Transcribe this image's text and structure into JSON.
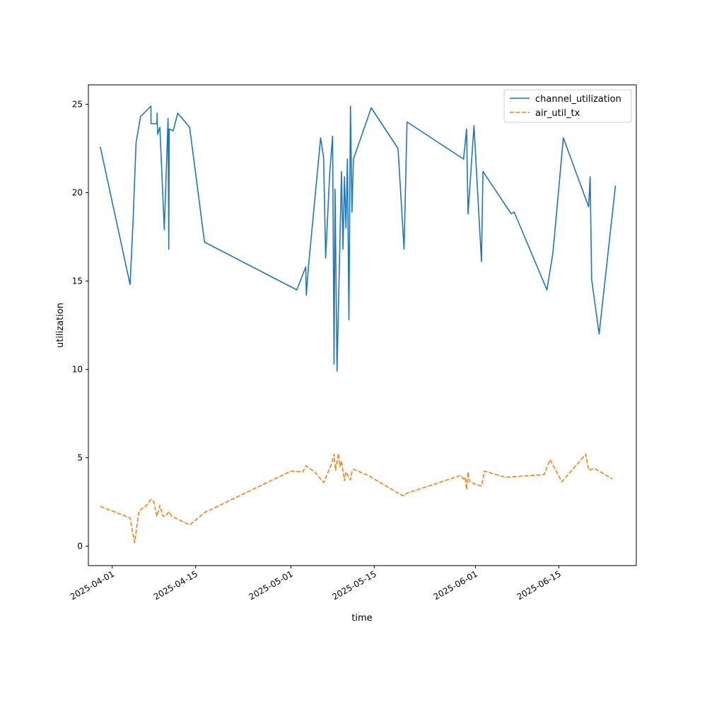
{
  "chart_data": {
    "type": "line",
    "title": "",
    "xlabel": "time",
    "ylabel": "utilization",
    "x_axis": "date",
    "xlim": [
      "2025-03-28",
      "2025-06-28"
    ],
    "ylim": [
      -1.1,
      26.1
    ],
    "x_ticks": [
      {
        "date": "2025-04-01",
        "label": "2025-04-01"
      },
      {
        "date": "2025-04-15",
        "label": "2025-04-15"
      },
      {
        "date": "2025-05-01",
        "label": "2025-05-01"
      },
      {
        "date": "2025-05-15",
        "label": "2025-05-15"
      },
      {
        "date": "2025-06-01",
        "label": "2025-06-01"
      },
      {
        "date": "2025-06-15",
        "label": "2025-06-15"
      }
    ],
    "y_ticks": [
      0,
      5,
      10,
      15,
      20,
      25
    ],
    "grid": false,
    "legend_position": "top-right",
    "series": [
      {
        "name": "channel_utilization",
        "color": "#1f77b4",
        "dash": "solid",
        "points": [
          [
            "2025-03-30",
            22.6
          ],
          [
            "2025-04-04",
            14.8
          ],
          [
            "2025-04-04T12:00",
            18.4
          ],
          [
            "2025-04-05",
            22.8
          ],
          [
            "2025-04-05T18:00",
            24.3
          ],
          [
            "2025-04-07T12:00",
            24.9
          ],
          [
            "2025-04-07T12:30",
            23.9
          ],
          [
            "2025-04-08T12:00",
            23.9
          ],
          [
            "2025-04-08T13:00",
            24.5
          ],
          [
            "2025-04-08T15:00",
            23.3
          ],
          [
            "2025-04-09",
            23.7
          ],
          [
            "2025-04-09T18:00",
            17.9
          ],
          [
            "2025-04-10T09:00",
            24.2
          ],
          [
            "2025-04-10T12:00",
            16.8
          ],
          [
            "2025-04-10T14:00",
            23.6
          ],
          [
            "2025-04-11T06:00",
            23.5
          ],
          [
            "2025-04-12",
            24.5
          ],
          [
            "2025-04-14",
            23.7
          ],
          [
            "2025-04-16T12:00",
            17.2
          ],
          [
            "2025-05-02",
            14.5
          ],
          [
            "2025-05-03T12:00",
            15.8
          ],
          [
            "2025-05-03T14:00",
            14.2
          ],
          [
            "2025-05-04",
            16.0
          ],
          [
            "2025-05-06",
            23.1
          ],
          [
            "2025-05-06T12:00",
            22.0
          ],
          [
            "2025-05-06T20:00",
            16.3
          ],
          [
            "2025-05-07T12:00",
            21.0
          ],
          [
            "2025-05-08",
            23.2
          ],
          [
            "2025-05-08T06:00",
            10.3
          ],
          [
            "2025-05-08T10:00",
            20.2
          ],
          [
            "2025-05-08T18:00",
            9.9
          ],
          [
            "2025-05-09T12:00",
            21.2
          ],
          [
            "2025-05-09T18:00",
            16.8
          ],
          [
            "2025-05-10",
            20.9
          ],
          [
            "2025-05-10T06:00",
            18.0
          ],
          [
            "2025-05-10T12:00",
            21.9
          ],
          [
            "2025-05-10T18:00",
            12.8
          ],
          [
            "2025-05-11",
            24.9
          ],
          [
            "2025-05-11T06:00",
            18.9
          ],
          [
            "2025-05-11T12:00",
            21.9
          ],
          [
            "2025-05-14T12:00",
            24.8
          ],
          [
            "2025-05-19",
            22.5
          ],
          [
            "2025-05-20",
            16.8
          ],
          [
            "2025-05-20T12:00",
            24.0
          ],
          [
            "2025-05-30",
            21.9
          ],
          [
            "2025-05-30T12:00",
            23.6
          ],
          [
            "2025-05-30T18:00",
            18.8
          ],
          [
            "2025-05-31T18:00",
            23.8
          ],
          [
            "2025-06-02",
            16.1
          ],
          [
            "2025-06-02T06:00",
            21.2
          ],
          [
            "2025-06-07",
            18.8
          ],
          [
            "2025-06-07T12:00",
            18.9
          ],
          [
            "2025-06-13",
            14.5
          ],
          [
            "2025-06-14",
            16.6
          ],
          [
            "2025-06-15T18:00",
            23.1
          ],
          [
            "2025-06-20",
            19.2
          ],
          [
            "2025-06-20T06:00",
            20.9
          ],
          [
            "2025-06-20T12:00",
            15.1
          ],
          [
            "2025-06-21T18:00",
            12.0
          ],
          [
            "2025-06-24T12:00",
            20.4
          ]
        ]
      },
      {
        "name": "air_util_tx",
        "color": "#ff7f0e",
        "dash": "dashed",
        "points": [
          [
            "2025-03-30",
            2.25
          ],
          [
            "2025-04-04",
            1.6
          ],
          [
            "2025-04-04T18:00",
            0.2
          ],
          [
            "2025-04-05T12:00",
            2.0
          ],
          [
            "2025-04-06T18:00",
            2.3
          ],
          [
            "2025-04-07T12:00",
            2.65
          ],
          [
            "2025-04-08",
            2.5
          ],
          [
            "2025-04-08T12:00",
            1.7
          ],
          [
            "2025-04-09",
            2.3
          ],
          [
            "2025-04-09T12:00",
            1.7
          ],
          [
            "2025-04-10",
            1.7
          ],
          [
            "2025-04-10T12:00",
            1.95
          ],
          [
            "2025-04-11",
            1.7
          ],
          [
            "2025-04-14",
            1.2
          ],
          [
            "2025-04-16T12:00",
            1.9
          ],
          [
            "2025-05-01",
            4.25
          ],
          [
            "2025-05-03",
            4.2
          ],
          [
            "2025-05-03T12:00",
            4.55
          ],
          [
            "2025-05-05",
            4.2
          ],
          [
            "2025-05-06T12:00",
            3.6
          ],
          [
            "2025-05-07T12:00",
            4.4
          ],
          [
            "2025-05-07T18:00",
            4.6
          ],
          [
            "2025-05-08T06:00",
            5.2
          ],
          [
            "2025-05-08T12:00",
            4.3
          ],
          [
            "2025-05-09",
            5.25
          ],
          [
            "2025-05-09T06:00",
            4.5
          ],
          [
            "2025-05-09T12:00",
            4.8
          ],
          [
            "2025-05-10",
            3.7
          ],
          [
            "2025-05-10T06:00",
            4.2
          ],
          [
            "2025-05-10T12:00",
            4.05
          ],
          [
            "2025-05-11",
            3.75
          ],
          [
            "2025-05-11T06:00",
            4.2
          ],
          [
            "2025-05-11T12:00",
            4.35
          ],
          [
            "2025-05-14",
            4.0
          ],
          [
            "2025-05-19T12:00",
            2.9
          ],
          [
            "2025-05-20",
            2.85
          ],
          [
            "2025-05-20T12:00",
            3.0
          ],
          [
            "2025-05-29T12:00",
            4.0
          ],
          [
            "2025-05-30",
            3.8
          ],
          [
            "2025-05-30T06:00",
            3.9
          ],
          [
            "2025-05-30T12:00",
            3.2
          ],
          [
            "2025-05-30T18:00",
            4.2
          ],
          [
            "2025-05-31",
            3.65
          ],
          [
            "2025-06-01",
            3.5
          ],
          [
            "2025-06-02",
            3.4
          ],
          [
            "2025-06-02T12:00",
            4.25
          ],
          [
            "2025-06-06",
            3.9
          ],
          [
            "2025-06-12T12:00",
            4.05
          ],
          [
            "2025-06-13T12:00",
            4.9
          ],
          [
            "2025-06-15T12:00",
            3.65
          ],
          [
            "2025-06-19T12:00",
            5.2
          ],
          [
            "2025-06-20",
            4.3
          ],
          [
            "2025-06-21",
            4.4
          ],
          [
            "2025-06-24",
            3.8
          ]
        ]
      }
    ]
  }
}
